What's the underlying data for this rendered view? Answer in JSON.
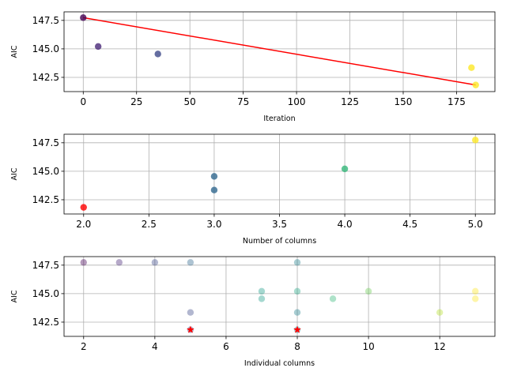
{
  "chart_data": [
    {
      "type": "scatter",
      "xlabel": "Iteration",
      "ylabel": "AIC",
      "xlim": [
        -9,
        193
      ],
      "ylim": [
        141.25,
        148.25
      ],
      "xticks": [
        0,
        25,
        50,
        75,
        100,
        125,
        150,
        175
      ],
      "yticks": [
        142.5,
        145.0,
        147.5
      ],
      "xtick_labels": [
        "0",
        "25",
        "50",
        "75",
        "100",
        "125",
        "150",
        "175"
      ],
      "ytick_labels": [
        "142.5",
        "145.0",
        "147.5"
      ],
      "grid": true,
      "points": [
        {
          "x": 0,
          "y": 147.74,
          "color": "#440154"
        },
        {
          "x": 7,
          "y": 145.21,
          "color": "#482878"
        },
        {
          "x": 35,
          "y": 144.55,
          "color": "#3e4a89"
        },
        {
          "x": 182,
          "y": 143.35,
          "color": "#fde725"
        },
        {
          "x": 184,
          "y": 141.83,
          "color": "#fde725"
        }
      ],
      "line": {
        "x": [
          0,
          184
        ],
        "y": [
          147.74,
          141.83
        ],
        "color": "#ff0000"
      }
    },
    {
      "type": "scatter",
      "xlabel": "Number of columns",
      "ylabel": "AIC",
      "xlim": [
        1.85,
        5.15
      ],
      "ylim": [
        141.25,
        148.25
      ],
      "xticks": [
        2.0,
        2.5,
        3.0,
        3.5,
        4.0,
        4.5,
        5.0
      ],
      "yticks": [
        142.5,
        145.0,
        147.5
      ],
      "xtick_labels": [
        "2.0",
        "2.5",
        "3.0",
        "3.5",
        "4.0",
        "4.5",
        "5.0"
      ],
      "ytick_labels": [
        "142.5",
        "145.0",
        "147.5"
      ],
      "grid": true,
      "points": [
        {
          "x": 2,
          "y": 141.83,
          "color": "#ff0000"
        },
        {
          "x": 3,
          "y": 144.55,
          "color": "#31688e"
        },
        {
          "x": 3,
          "y": 143.35,
          "color": "#31688e"
        },
        {
          "x": 4,
          "y": 145.21,
          "color": "#35b779"
        },
        {
          "x": 5,
          "y": 147.74,
          "color": "#fde725"
        }
      ]
    },
    {
      "type": "scatter",
      "xlabel": "Individual columns",
      "ylabel": "AIC",
      "xlim": [
        1.45,
        13.55
      ],
      "ylim": [
        141.25,
        148.25
      ],
      "xticks": [
        2,
        4,
        6,
        8,
        10,
        12
      ],
      "yticks": [
        142.5,
        145.0,
        147.5
      ],
      "xtick_labels": [
        "2",
        "4",
        "6",
        "8",
        "10",
        "12"
      ],
      "ytick_labels": [
        "142.5",
        "145.0",
        "147.5"
      ],
      "grid": true,
      "points": [
        {
          "x": 2,
          "y": 147.74,
          "color": "#440154",
          "alpha": 0.4
        },
        {
          "x": 3,
          "y": 147.74,
          "color": "#482878",
          "alpha": 0.4
        },
        {
          "x": 4,
          "y": 147.74,
          "color": "#3e4a89",
          "alpha": 0.4
        },
        {
          "x": 5,
          "y": 147.74,
          "color": "#31688e",
          "alpha": 0.4
        },
        {
          "x": 8,
          "y": 147.74,
          "color": "#26828e",
          "alpha": 0.4
        },
        {
          "x": 7,
          "y": 145.21,
          "color": "#1f9e89",
          "alpha": 0.4
        },
        {
          "x": 7,
          "y": 144.55,
          "color": "#1f9e89",
          "alpha": 0.4
        },
        {
          "x": 8,
          "y": 145.21,
          "color": "#26a887",
          "alpha": 0.4
        },
        {
          "x": 9,
          "y": 144.55,
          "color": "#35b779",
          "alpha": 0.4
        },
        {
          "x": 10,
          "y": 145.21,
          "color": "#6ece58",
          "alpha": 0.4
        },
        {
          "x": 5,
          "y": 143.35,
          "color": "#3e4a89",
          "alpha": 0.4
        },
        {
          "x": 8,
          "y": 143.35,
          "color": "#26828e",
          "alpha": 0.4
        },
        {
          "x": 12,
          "y": 143.35,
          "color": "#b5de2b",
          "alpha": 0.4
        },
        {
          "x": 13,
          "y": 145.21,
          "color": "#fde725",
          "alpha": 0.4
        },
        {
          "x": 13,
          "y": 144.55,
          "color": "#fde725",
          "alpha": 0.4
        },
        {
          "x": 5,
          "y": 141.83,
          "color": "#3e4a89",
          "alpha": 0.4
        },
        {
          "x": 8,
          "y": 141.83,
          "color": "#26828e",
          "alpha": 0.4
        }
      ],
      "best_markers": [
        {
          "x": 5,
          "y": 141.83,
          "color": "#ff0000"
        },
        {
          "x": 8,
          "y": 141.83,
          "color": "#ff0000"
        }
      ]
    }
  ]
}
